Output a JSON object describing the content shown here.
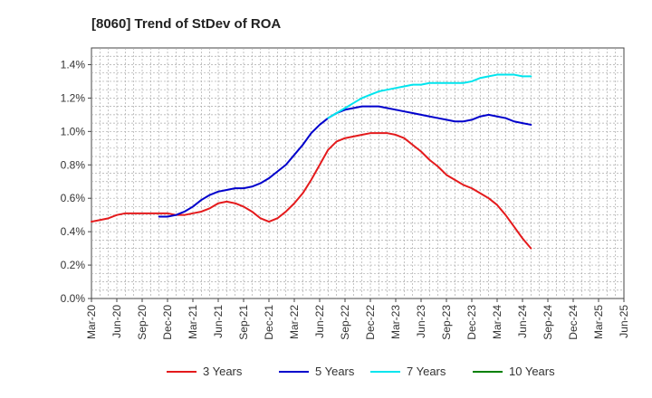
{
  "chart_data": {
    "type": "line",
    "title": "[8060]  Trend of StDev of ROA",
    "xlabel": "",
    "ylabel": "",
    "x_ticks": [
      "Mar-20",
      "Jun-20",
      "Sep-20",
      "Dec-20",
      "Mar-21",
      "Jun-21",
      "Sep-21",
      "Dec-21",
      "Mar-22",
      "Jun-22",
      "Sep-22",
      "Dec-22",
      "Mar-23",
      "Jun-23",
      "Sep-23",
      "Dec-23",
      "Mar-24",
      "Jun-24",
      "Sep-24",
      "Dec-24",
      "Mar-25",
      "Jun-25"
    ],
    "y_ticks": [
      "0.0%",
      "0.2%",
      "0.4%",
      "0.6%",
      "0.8%",
      "1.0%",
      "1.2%",
      "1.4%"
    ],
    "ylim": [
      0,
      1.5
    ],
    "y_unit": "%",
    "grid": true,
    "legend_position": "bottom",
    "series": [
      {
        "name": "3 Years",
        "color": "#e41a1c",
        "values": [
          0.46,
          0.47,
          0.48,
          0.5,
          0.51,
          0.51,
          0.51,
          0.51,
          0.51,
          0.51,
          0.5,
          0.5,
          0.51,
          0.52,
          0.54,
          0.57,
          0.58,
          0.57,
          0.55,
          0.52,
          0.48,
          0.46,
          0.48,
          0.52,
          0.57,
          0.63,
          0.71,
          0.8,
          0.89,
          0.94,
          0.96,
          0.97,
          0.98,
          0.99,
          0.99,
          0.99,
          0.98,
          0.96,
          0.92,
          0.88,
          0.83,
          0.79,
          0.74,
          0.71,
          0.68,
          0.66,
          0.63,
          0.6,
          0.56,
          0.5,
          0.43,
          0.36,
          0.3
        ]
      },
      {
        "name": "5 Years",
        "color": "#0000cc",
        "values": [
          null,
          null,
          null,
          null,
          null,
          null,
          null,
          null,
          0.49,
          0.49,
          0.5,
          0.52,
          0.55,
          0.59,
          0.62,
          0.64,
          0.65,
          0.66,
          0.66,
          0.67,
          0.69,
          0.72,
          0.76,
          0.8,
          0.86,
          0.92,
          0.99,
          1.04,
          1.08,
          1.11,
          1.13,
          1.14,
          1.15,
          1.15,
          1.15,
          1.14,
          1.13,
          1.12,
          1.11,
          1.1,
          1.09,
          1.08,
          1.07,
          1.06,
          1.06,
          1.07,
          1.09,
          1.1,
          1.09,
          1.08,
          1.06,
          1.05,
          1.04
        ]
      },
      {
        "name": "7 Years",
        "color": "#00e5ee",
        "values": [
          null,
          null,
          null,
          null,
          null,
          null,
          null,
          null,
          null,
          null,
          null,
          null,
          null,
          null,
          null,
          null,
          null,
          null,
          null,
          null,
          null,
          null,
          null,
          null,
          null,
          null,
          null,
          null,
          1.08,
          1.11,
          1.14,
          1.17,
          1.2,
          1.22,
          1.24,
          1.25,
          1.26,
          1.27,
          1.28,
          1.28,
          1.29,
          1.29,
          1.29,
          1.29,
          1.29,
          1.3,
          1.32,
          1.33,
          1.34,
          1.34,
          1.34,
          1.33,
          1.33
        ]
      },
      {
        "name": "10 Years",
        "color": "#008000",
        "values": []
      }
    ]
  }
}
